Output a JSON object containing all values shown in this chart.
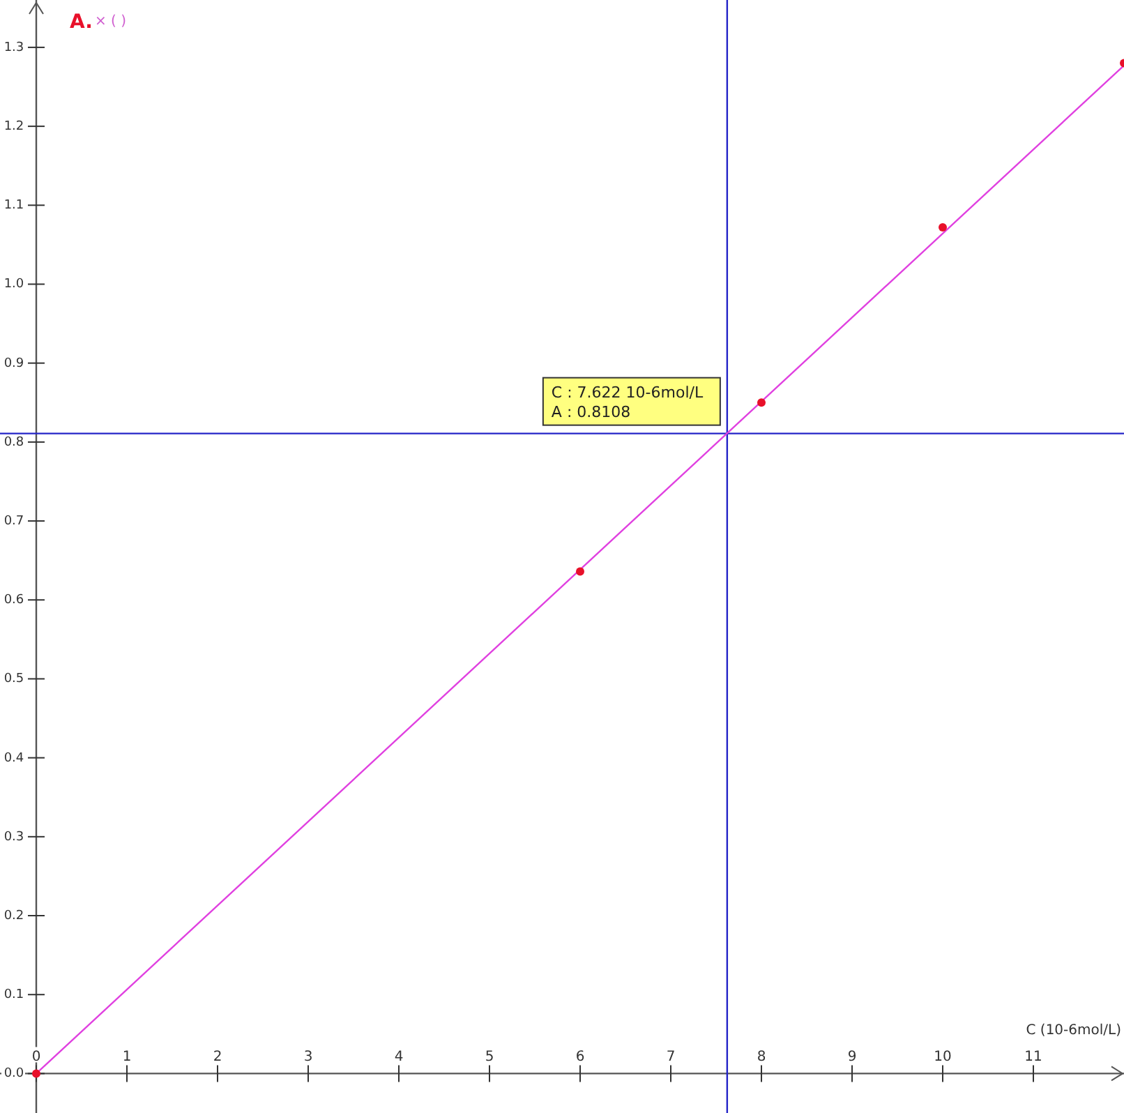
{
  "chart_data": {
    "type": "scatter",
    "xlabel": "C (10-6mol/L)",
    "ylabel": "A.",
    "xlim": [
      -0.4,
      12
    ],
    "ylim": [
      -0.05,
      1.36
    ],
    "xticks": [
      0,
      1,
      2,
      3,
      4,
      5,
      6,
      7,
      8,
      9,
      10,
      11
    ],
    "yticks": [
      {
        "value": 0,
        "label": "0.0"
      },
      {
        "value": 0.1,
        "label": "0.1"
      },
      {
        "value": 0.2,
        "label": "0.2"
      },
      {
        "value": 0.3,
        "label": "0.3"
      },
      {
        "value": 0.4,
        "label": "0.4"
      },
      {
        "value": 0.5,
        "label": "0.5"
      },
      {
        "value": 0.6,
        "label": "0.6"
      },
      {
        "value": 0.7,
        "label": "0.7"
      },
      {
        "value": 0.8,
        "label": "0.8"
      },
      {
        "value": 0.9,
        "label": "0.9"
      },
      {
        "value": 1,
        "label": "1.0"
      },
      {
        "value": 1.1,
        "label": "1.1"
      },
      {
        "value": 1.2,
        "label": "1.2"
      },
      {
        "value": 1.3,
        "label": "1.3"
      }
    ],
    "series": [
      {
        "type": "line",
        "color": "#e040e0",
        "x": [
          0,
          12
        ],
        "values": [
          0,
          1.277
        ]
      },
      {
        "color": "#e8102a",
        "marker": "circle",
        "x": [
          0,
          6,
          8,
          10,
          12
        ],
        "values": [
          0,
          0.636,
          0.85,
          1.072,
          1.28
        ]
      }
    ],
    "ref_lines": [
      {
        "axis": "x",
        "value": 7.622,
        "color": "#2424c8"
      },
      {
        "axis": "y",
        "value": 0.8108,
        "color": "#2424c8"
      }
    ],
    "annotations": [
      {
        "text": "C : 7.622 10-6mol/L\nA : 0.8108",
        "x": 7.622,
        "y": 0.8108
      },
      "× ( )"
    ]
  }
}
